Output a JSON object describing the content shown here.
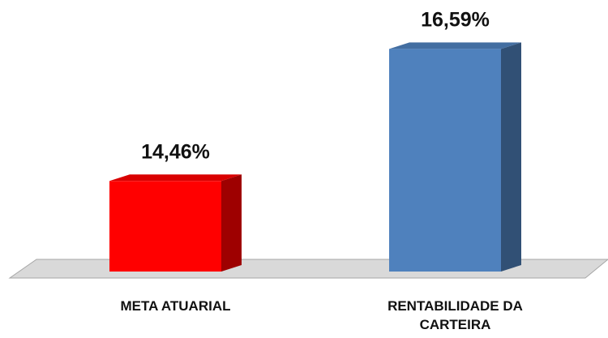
{
  "chart_data": {
    "type": "bar3d",
    "categories": [
      "META ATUARIAL",
      "RENTABILIDADE DA CARTEIRA"
    ],
    "values": [
      14.46,
      16.59
    ],
    "value_labels": [
      "14,46%",
      "16,59%"
    ],
    "colors": [
      "#ff0000",
      "#4f81bd"
    ],
    "ylim": [
      13,
      17
    ]
  }
}
